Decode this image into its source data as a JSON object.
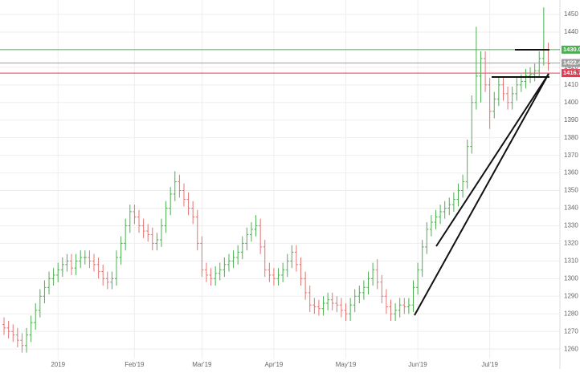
{
  "chart_data": {
    "type": "ohlc",
    "up_color": "#4caf50",
    "down_color": "#e57373",
    "grid": true,
    "xlim": [
      -0.9,
      123.6
    ],
    "ylim": [
      1254.6,
      1458.2
    ],
    "xticks": [
      {
        "value": 12,
        "label": "2019"
      },
      {
        "value": 29,
        "label": "Feb'19"
      },
      {
        "value": 44,
        "label": "Mar'19"
      },
      {
        "value": 60,
        "label": "Apr'19"
      },
      {
        "value": 76,
        "label": "May'19"
      },
      {
        "value": 92,
        "label": "Jun'19"
      },
      {
        "value": 108,
        "label": "Jul'19"
      }
    ],
    "yticks": [
      1260,
      1270,
      1280,
      1290,
      1300,
      1310,
      1320,
      1330,
      1340,
      1350,
      1360,
      1370,
      1380,
      1390,
      1400,
      1410,
      1420,
      1430,
      1440,
      1450
    ],
    "opens": [
      1274,
      1272,
      1270,
      1268,
      1265,
      1262,
      1268,
      1275,
      1282,
      1290,
      1295,
      1300,
      1302,
      1305,
      1308,
      1310,
      1306,
      1310,
      1312,
      1312,
      1310,
      1308,
      1304,
      1300,
      1298,
      1300,
      1312,
      1320,
      1330,
      1338,
      1335,
      1330,
      1327,
      1325,
      1320,
      1322,
      1330,
      1340,
      1348,
      1355,
      1350,
      1345,
      1340,
      1335,
      1320,
      1305,
      1302,
      1300,
      1303,
      1305,
      1308,
      1310,
      1312,
      1315,
      1320,
      1325,
      1328,
      1330,
      1318,
      1305,
      1302,
      1300,
      1302,
      1305,
      1310,
      1315,
      1308,
      1300,
      1292,
      1285,
      1284,
      1283,
      1286,
      1288,
      1286,
      1285,
      1282,
      1280,
      1285,
      1290,
      1292,
      1295,
      1300,
      1305,
      1298,
      1290,
      1284,
      1280,
      1282,
      1285,
      1284,
      1285,
      1295,
      1305,
      1318,
      1328,
      1332,
      1335,
      1338,
      1340,
      1342,
      1345,
      1350,
      1355,
      1375,
      1400,
      1415,
      1425,
      1410,
      1395,
      1402,
      1410,
      1405,
      1400,
      1405,
      1410,
      1412,
      1415,
      1416,
      1418,
      1425,
      1430
    ],
    "highs": [
      1278,
      1276,
      1274,
      1272,
      1269,
      1272,
      1279,
      1286,
      1294,
      1299,
      1304,
      1306,
      1309,
      1312,
      1314,
      1314,
      1314,
      1316,
      1316,
      1316,
      1314,
      1312,
      1308,
      1304,
      1304,
      1316,
      1324,
      1334,
      1342,
      1342,
      1339,
      1334,
      1331,
      1329,
      1326,
      1334,
      1344,
      1352,
      1361,
      1359,
      1354,
      1349,
      1344,
      1339,
      1324,
      1309,
      1306,
      1307,
      1309,
      1312,
      1314,
      1316,
      1319,
      1324,
      1329,
      1332,
      1336,
      1334,
      1322,
      1309,
      1306,
      1306,
      1309,
      1314,
      1319,
      1319,
      1312,
      1304,
      1296,
      1289,
      1288,
      1290,
      1292,
      1292,
      1290,
      1289,
      1286,
      1289,
      1294,
      1296,
      1299,
      1304,
      1309,
      1311,
      1302,
      1294,
      1288,
      1286,
      1289,
      1289,
      1289,
      1299,
      1309,
      1322,
      1332,
      1336,
      1339,
      1342,
      1344,
      1346,
      1349,
      1354,
      1359,
      1379,
      1404,
      1443,
      1429,
      1429,
      1414,
      1406,
      1414,
      1414,
      1409,
      1409,
      1414,
      1416,
      1419,
      1420,
      1422,
      1429,
      1454,
      1434
    ],
    "lows": [
      1268,
      1266,
      1264,
      1261,
      1258,
      1258,
      1264,
      1271,
      1278,
      1286,
      1291,
      1296,
      1298,
      1301,
      1304,
      1302,
      1302,
      1306,
      1308,
      1306,
      1304,
      1300,
      1296,
      1294,
      1294,
      1296,
      1308,
      1316,
      1326,
      1331,
      1326,
      1323,
      1321,
      1316,
      1316,
      1318,
      1326,
      1336,
      1344,
      1346,
      1341,
      1336,
      1331,
      1316,
      1301,
      1298,
      1296,
      1296,
      1299,
      1301,
      1304,
      1306,
      1308,
      1311,
      1316,
      1321,
      1324,
      1314,
      1301,
      1298,
      1296,
      1296,
      1298,
      1301,
      1306,
      1304,
      1296,
      1288,
      1281,
      1280,
      1279,
      1279,
      1282,
      1282,
      1281,
      1278,
      1276,
      1276,
      1281,
      1286,
      1288,
      1291,
      1296,
      1294,
      1286,
      1280,
      1276,
      1276,
      1278,
      1280,
      1280,
      1281,
      1291,
      1301,
      1314,
      1324,
      1328,
      1331,
      1334,
      1336,
      1338,
      1341,
      1346,
      1351,
      1371,
      1396,
      1400,
      1406,
      1385,
      1391,
      1398,
      1401,
      1396,
      1396,
      1401,
      1406,
      1408,
      1411,
      1412,
      1414,
      1421,
      1418
    ],
    "closes": [
      1272,
      1270,
      1268,
      1265,
      1262,
      1268,
      1275,
      1282,
      1290,
      1295,
      1300,
      1302,
      1305,
      1308,
      1310,
      1306,
      1310,
      1312,
      1312,
      1310,
      1308,
      1304,
      1300,
      1298,
      1300,
      1312,
      1320,
      1330,
      1338,
      1335,
      1330,
      1327,
      1325,
      1320,
      1322,
      1330,
      1340,
      1348,
      1355,
      1350,
      1345,
      1340,
      1335,
      1320,
      1305,
      1302,
      1300,
      1303,
      1305,
      1308,
      1310,
      1312,
      1315,
      1320,
      1325,
      1328,
      1330,
      1318,
      1305,
      1302,
      1300,
      1302,
      1305,
      1310,
      1315,
      1308,
      1300,
      1292,
      1285,
      1284,
      1283,
      1286,
      1288,
      1286,
      1285,
      1282,
      1280,
      1285,
      1290,
      1292,
      1295,
      1300,
      1305,
      1298,
      1290,
      1284,
      1280,
      1282,
      1285,
      1284,
      1285,
      1295,
      1305,
      1318,
      1328,
      1332,
      1335,
      1338,
      1340,
      1342,
      1345,
      1350,
      1355,
      1375,
      1400,
      1415,
      1425,
      1410,
      1395,
      1402,
      1410,
      1405,
      1400,
      1405,
      1410,
      1412,
      1415,
      1416,
      1418,
      1425,
      1430,
      1422
    ],
    "price_lines": [
      {
        "value": 1430,
        "label": "1430.0",
        "color": "#4caf50"
      },
      {
        "value": 1422.4,
        "label": "1422.4",
        "color": "#9e9e9e"
      },
      {
        "value": 1416.7,
        "label": "1416.7",
        "color": "#e53950"
      }
    ]
  }
}
